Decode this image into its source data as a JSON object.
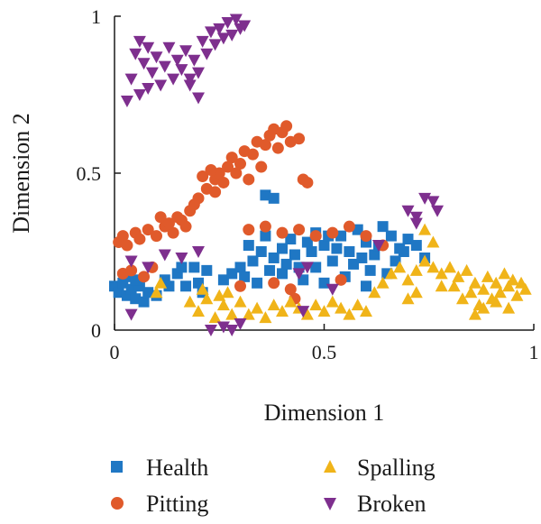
{
  "chart_data": {
    "type": "scatter",
    "title": "",
    "xlabel": "Dimension 1",
    "ylabel": "Dimension 2",
    "xlim": [
      0,
      1
    ],
    "ylim": [
      0,
      1
    ],
    "xticks": [
      "0",
      "0.5",
      "1"
    ],
    "yticks": [
      "0",
      "0.5",
      "1"
    ],
    "grid": false,
    "legend_position": "bottom",
    "series": [
      {
        "name": "Health",
        "marker": "square",
        "color": "#1f77c4",
        "points": [
          [
            0.0,
            0.14
          ],
          [
            0.01,
            0.12
          ],
          [
            0.02,
            0.15
          ],
          [
            0.03,
            0.11
          ],
          [
            0.04,
            0.13
          ],
          [
            0.05,
            0.1
          ],
          [
            0.06,
            0.14
          ],
          [
            0.07,
            0.09
          ],
          [
            0.08,
            0.12
          ],
          [
            0.03,
            0.17
          ],
          [
            0.05,
            0.16
          ],
          [
            0.1,
            0.11
          ],
          [
            0.12,
            0.16
          ],
          [
            0.15,
            0.18
          ],
          [
            0.17,
            0.14
          ],
          [
            0.19,
            0.2
          ],
          [
            0.2,
            0.15
          ],
          [
            0.22,
            0.19
          ],
          [
            0.13,
            0.14
          ],
          [
            0.16,
            0.2
          ],
          [
            0.21,
            0.12
          ],
          [
            0.26,
            0.16
          ],
          [
            0.28,
            0.18
          ],
          [
            0.3,
            0.2
          ],
          [
            0.33,
            0.22
          ],
          [
            0.35,
            0.25
          ],
          [
            0.32,
            0.27
          ],
          [
            0.36,
            0.3
          ],
          [
            0.38,
            0.23
          ],
          [
            0.4,
            0.26
          ],
          [
            0.42,
            0.29
          ],
          [
            0.44,
            0.2
          ],
          [
            0.46,
            0.28
          ],
          [
            0.48,
            0.31
          ],
          [
            0.5,
            0.27
          ],
          [
            0.52,
            0.22
          ],
          [
            0.54,
            0.3
          ],
          [
            0.56,
            0.25
          ],
          [
            0.58,
            0.32
          ],
          [
            0.6,
            0.28
          ],
          [
            0.62,
            0.24
          ],
          [
            0.64,
            0.33
          ],
          [
            0.66,
            0.3
          ],
          [
            0.68,
            0.26
          ],
          [
            0.7,
            0.29
          ],
          [
            0.72,
            0.27
          ],
          [
            0.74,
            0.23
          ],
          [
            0.36,
            0.43
          ],
          [
            0.38,
            0.42
          ],
          [
            0.4,
            0.18
          ],
          [
            0.45,
            0.16
          ],
          [
            0.5,
            0.15
          ],
          [
            0.55,
            0.17
          ],
          [
            0.6,
            0.14
          ],
          [
            0.65,
            0.18
          ],
          [
            0.48,
            0.2
          ],
          [
            0.53,
            0.26
          ],
          [
            0.57,
            0.21
          ],
          [
            0.61,
            0.19
          ],
          [
            0.43,
            0.24
          ],
          [
            0.31,
            0.17
          ],
          [
            0.34,
            0.15
          ],
          [
            0.37,
            0.19
          ],
          [
            0.41,
            0.21
          ],
          [
            0.47,
            0.25
          ],
          [
            0.51,
            0.3
          ],
          [
            0.59,
            0.23
          ],
          [
            0.63,
            0.27
          ],
          [
            0.67,
            0.22
          ],
          [
            0.69,
            0.25
          ]
        ]
      },
      {
        "name": "Pitting",
        "marker": "circle",
        "color": "#e05a2b",
        "points": [
          [
            0.01,
            0.28
          ],
          [
            0.02,
            0.3
          ],
          [
            0.03,
            0.27
          ],
          [
            0.05,
            0.31
          ],
          [
            0.06,
            0.29
          ],
          [
            0.08,
            0.32
          ],
          [
            0.1,
            0.3
          ],
          [
            0.12,
            0.33
          ],
          [
            0.14,
            0.31
          ],
          [
            0.16,
            0.35
          ],
          [
            0.18,
            0.38
          ],
          [
            0.2,
            0.42
          ],
          [
            0.22,
            0.45
          ],
          [
            0.24,
            0.48
          ],
          [
            0.25,
            0.5
          ],
          [
            0.27,
            0.52
          ],
          [
            0.28,
            0.55
          ],
          [
            0.3,
            0.53
          ],
          [
            0.31,
            0.57
          ],
          [
            0.33,
            0.56
          ],
          [
            0.34,
            0.6
          ],
          [
            0.36,
            0.59
          ],
          [
            0.37,
            0.62
          ],
          [
            0.38,
            0.64
          ],
          [
            0.4,
            0.63
          ],
          [
            0.41,
            0.65
          ],
          [
            0.42,
            0.6
          ],
          [
            0.44,
            0.61
          ],
          [
            0.21,
            0.49
          ],
          [
            0.23,
            0.51
          ],
          [
            0.26,
            0.47
          ],
          [
            0.29,
            0.5
          ],
          [
            0.32,
            0.48
          ],
          [
            0.35,
            0.52
          ],
          [
            0.39,
            0.58
          ],
          [
            0.45,
            0.48
          ],
          [
            0.46,
            0.47
          ],
          [
            0.02,
            0.18
          ],
          [
            0.04,
            0.19
          ],
          [
            0.07,
            0.17
          ],
          [
            0.09,
            0.2
          ],
          [
            0.3,
            0.14
          ],
          [
            0.32,
            0.32
          ],
          [
            0.36,
            0.33
          ],
          [
            0.4,
            0.31
          ],
          [
            0.44,
            0.32
          ],
          [
            0.48,
            0.3
          ],
          [
            0.52,
            0.31
          ],
          [
            0.56,
            0.33
          ],
          [
            0.6,
            0.3
          ],
          [
            0.64,
            0.27
          ],
          [
            0.38,
            0.15
          ],
          [
            0.42,
            0.13
          ],
          [
            0.54,
            0.16
          ],
          [
            0.11,
            0.36
          ],
          [
            0.13,
            0.34
          ],
          [
            0.15,
            0.36
          ],
          [
            0.17,
            0.33
          ],
          [
            0.19,
            0.4
          ],
          [
            0.24,
            0.44
          ],
          [
            0.43,
            0.1
          ]
        ]
      },
      {
        "name": "Spalling",
        "marker": "triangle-up",
        "color": "#f0b419",
        "points": [
          [
            0.18,
            0.09
          ],
          [
            0.2,
            0.06
          ],
          [
            0.22,
            0.1
          ],
          [
            0.24,
            0.04
          ],
          [
            0.26,
            0.08
          ],
          [
            0.28,
            0.05
          ],
          [
            0.3,
            0.09
          ],
          [
            0.32,
            0.05
          ],
          [
            0.34,
            0.07
          ],
          [
            0.36,
            0.04
          ],
          [
            0.38,
            0.08
          ],
          [
            0.4,
            0.06
          ],
          [
            0.42,
            0.09
          ],
          [
            0.44,
            0.07
          ],
          [
            0.46,
            0.05
          ],
          [
            0.48,
            0.08
          ],
          [
            0.5,
            0.06
          ],
          [
            0.52,
            0.09
          ],
          [
            0.54,
            0.07
          ],
          [
            0.56,
            0.05
          ],
          [
            0.58,
            0.08
          ],
          [
            0.6,
            0.06
          ],
          [
            0.62,
            0.12
          ],
          [
            0.64,
            0.15
          ],
          [
            0.66,
            0.18
          ],
          [
            0.68,
            0.2
          ],
          [
            0.7,
            0.16
          ],
          [
            0.72,
            0.19
          ],
          [
            0.74,
            0.22
          ],
          [
            0.76,
            0.2
          ],
          [
            0.78,
            0.18
          ],
          [
            0.8,
            0.2
          ],
          [
            0.82,
            0.17
          ],
          [
            0.84,
            0.19
          ],
          [
            0.85,
            0.12
          ],
          [
            0.86,
            0.15
          ],
          [
            0.87,
            0.08
          ],
          [
            0.88,
            0.13
          ],
          [
            0.89,
            0.17
          ],
          [
            0.9,
            0.1
          ],
          [
            0.91,
            0.15
          ],
          [
            0.92,
            0.12
          ],
          [
            0.93,
            0.18
          ],
          [
            0.94,
            0.14
          ],
          [
            0.95,
            0.16
          ],
          [
            0.96,
            0.11
          ],
          [
            0.97,
            0.15
          ],
          [
            0.98,
            0.13
          ],
          [
            0.86,
            0.05
          ],
          [
            0.88,
            0.07
          ],
          [
            0.91,
            0.09
          ],
          [
            0.94,
            0.07
          ],
          [
            0.27,
            0.12
          ],
          [
            0.25,
            0.11
          ],
          [
            0.21,
            0.13
          ],
          [
            0.74,
            0.32
          ],
          [
            0.76,
            0.28
          ],
          [
            0.1,
            0.12
          ],
          [
            0.11,
            0.15
          ],
          [
            0.72,
            0.12
          ],
          [
            0.7,
            0.1
          ],
          [
            0.78,
            0.14
          ],
          [
            0.83,
            0.1
          ],
          [
            0.81,
            0.14
          ]
        ]
      },
      {
        "name": "Broken",
        "marker": "triangle-down",
        "color": "#7e2f8e",
        "points": [
          [
            0.05,
            0.88
          ],
          [
            0.06,
            0.92
          ],
          [
            0.07,
            0.85
          ],
          [
            0.08,
            0.9
          ],
          [
            0.09,
            0.82
          ],
          [
            0.1,
            0.87
          ],
          [
            0.11,
            0.78
          ],
          [
            0.12,
            0.84
          ],
          [
            0.13,
            0.9
          ],
          [
            0.14,
            0.8
          ],
          [
            0.15,
            0.86
          ],
          [
            0.16,
            0.83
          ],
          [
            0.17,
            0.89
          ],
          [
            0.18,
            0.8
          ],
          [
            0.19,
            0.86
          ],
          [
            0.2,
            0.82
          ],
          [
            0.21,
            0.92
          ],
          [
            0.22,
            0.88
          ],
          [
            0.23,
            0.95
          ],
          [
            0.24,
            0.91
          ],
          [
            0.25,
            0.96
          ],
          [
            0.26,
            0.93
          ],
          [
            0.27,
            0.98
          ],
          [
            0.28,
            0.94
          ],
          [
            0.29,
            0.99
          ],
          [
            0.3,
            0.96
          ],
          [
            0.31,
            0.97
          ],
          [
            0.04,
            0.8
          ],
          [
            0.03,
            0.73
          ],
          [
            0.06,
            0.75
          ],
          [
            0.08,
            0.77
          ],
          [
            0.2,
            0.74
          ],
          [
            0.18,
            0.78
          ],
          [
            0.04,
            0.22
          ],
          [
            0.08,
            0.2
          ],
          [
            0.12,
            0.24
          ],
          [
            0.16,
            0.23
          ],
          [
            0.2,
            0.25
          ],
          [
            0.26,
            0.01
          ],
          [
            0.28,
            0.0
          ],
          [
            0.3,
            0.02
          ],
          [
            0.23,
            0.0
          ],
          [
            0.44,
            0.18
          ],
          [
            0.46,
            0.2
          ],
          [
            0.7,
            0.38
          ],
          [
            0.72,
            0.36
          ],
          [
            0.74,
            0.42
          ],
          [
            0.76,
            0.41
          ],
          [
            0.77,
            0.38
          ],
          [
            0.72,
            0.34
          ],
          [
            0.04,
            0.05
          ],
          [
            0.45,
            0.06
          ],
          [
            0.52,
            0.13
          ],
          [
            0.63,
            0.27
          ]
        ]
      }
    ]
  }
}
